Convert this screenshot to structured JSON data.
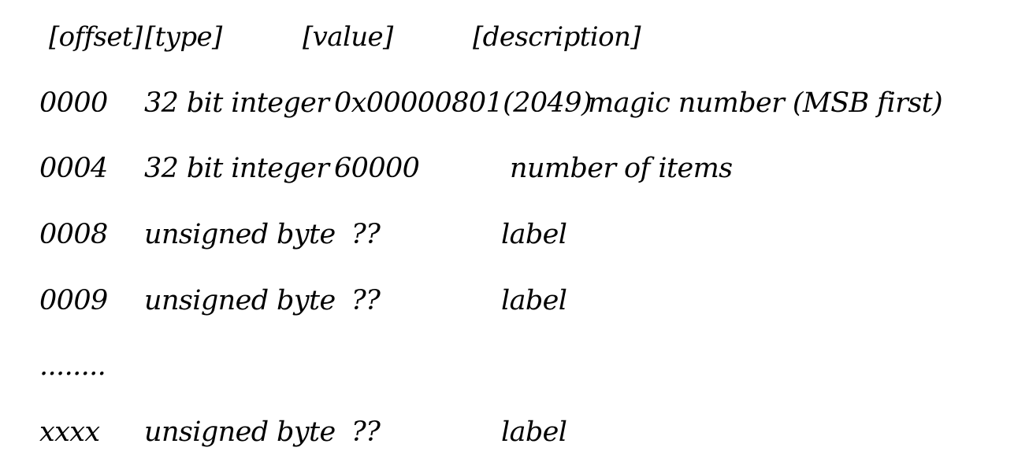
{
  "header": {
    "offset": "[offset]",
    "type": "[type]",
    "value": "[value]",
    "description": "[description]"
  },
  "rows": [
    {
      "offset": "0000",
      "type": "32 bit integer",
      "value": "0x00000801(2049)",
      "description": "magic number (MSB first)"
    },
    {
      "offset": "0004",
      "type": "32 bit integer",
      "value": "60000",
      "description": "number of items"
    },
    {
      "offset": "0008",
      "type": "unsigned byte",
      "value": "??",
      "description": "label"
    },
    {
      "offset": "0009",
      "type": "unsigned byte",
      "value": "??",
      "description": "label"
    },
    {
      "offset": "........"
    },
    {
      "offset": "xxxx",
      "type": "unsigned byte",
      "value": "??",
      "description": "label"
    }
  ]
}
